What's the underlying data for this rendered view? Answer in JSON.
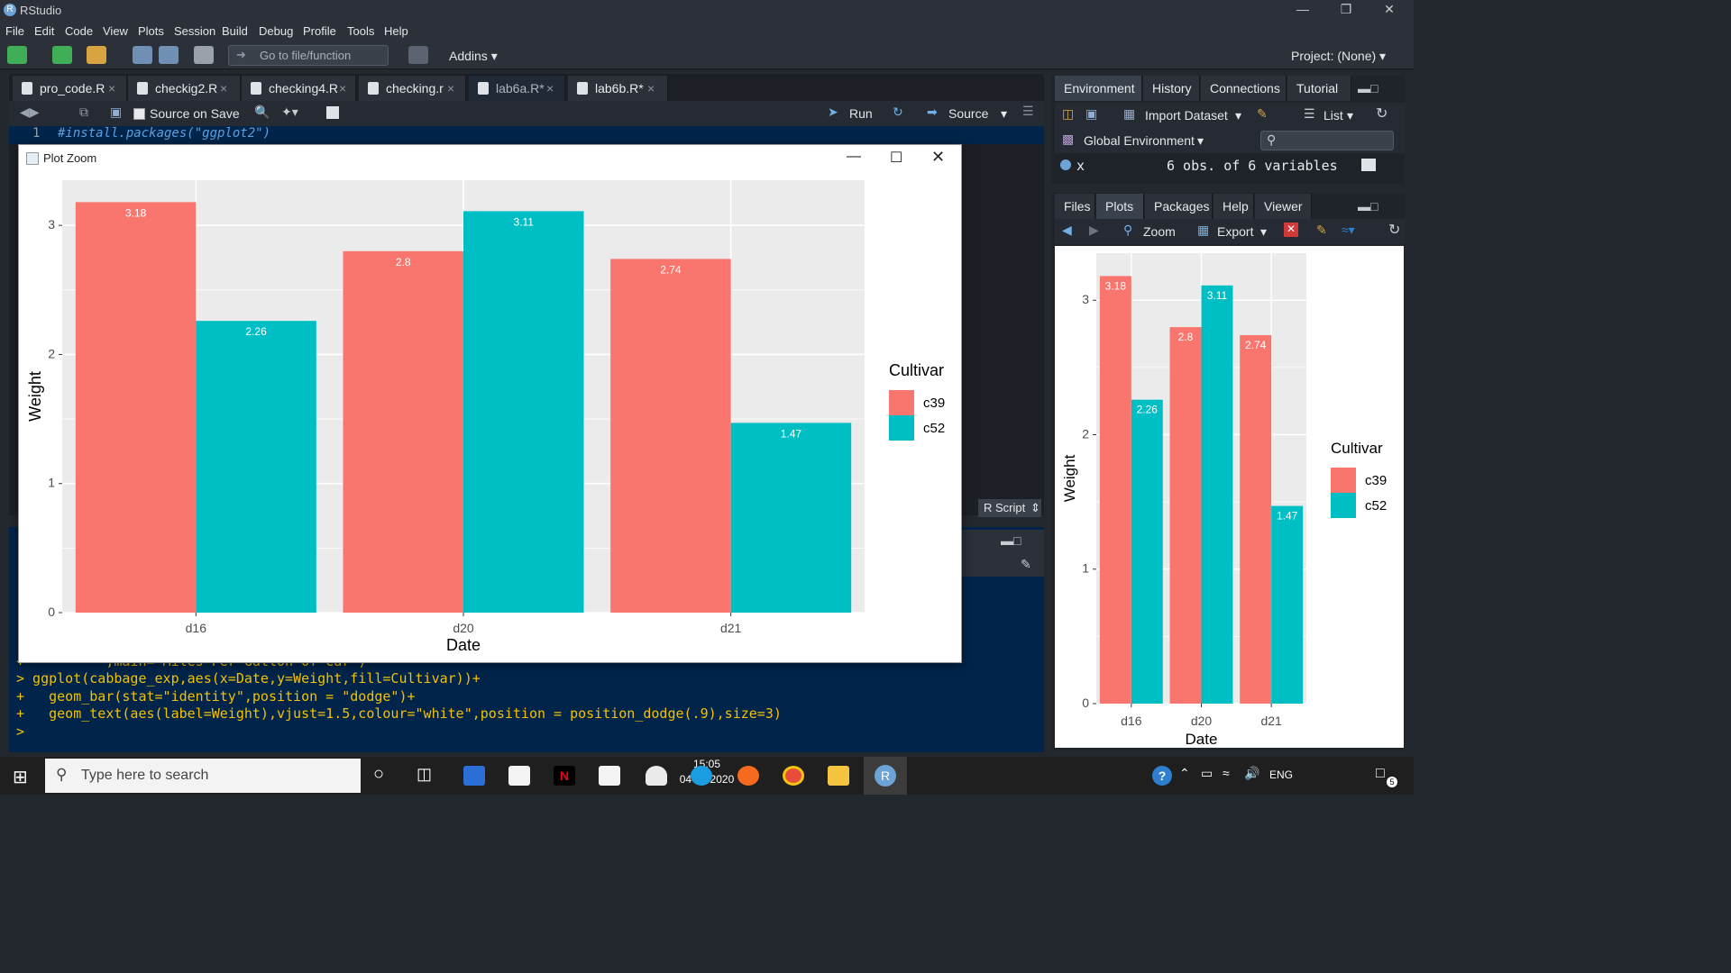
{
  "window": {
    "title": "RStudio"
  },
  "menu": [
    "File",
    "Edit",
    "Code",
    "View",
    "Plots",
    "Session",
    "Build",
    "Debug",
    "Profile",
    "Tools",
    "Help"
  ],
  "toolbar": {
    "goto_placeholder": "Go to file/function",
    "addins": "Addins",
    "project": "Project: (None)"
  },
  "source": {
    "tabs": [
      "pro_code.R",
      "checkig2.R",
      "checking4.R",
      "checking.r",
      "lab6a.R*",
      "lab6b.R*"
    ],
    "active_tab": "lab6a.R*",
    "source_on_save": "Source on Save",
    "run": "Run",
    "source_btn": "Source",
    "line_no": "1",
    "line_code": "#install.packages(\"ggplot2\")",
    "file_type": "R Script"
  },
  "console": {
    "partial_line": "+          ,main= Miles Per Gallon of Car )",
    "lines": [
      "> ggplot(cabbage_exp,aes(x=Date,y=Weight,fill=Cultivar))+",
      "+   geom_bar(stat=\"identity\",position = \"dodge\")+",
      "+   geom_text(aes(label=Weight),vjust=1.5,colour=\"white\",position = position_dodge(.9),size=3)",
      "> "
    ]
  },
  "env": {
    "tabs": [
      "Environment",
      "History",
      "Connections",
      "Tutorial"
    ],
    "import_dataset": "Import Dataset",
    "list": "List",
    "global_env": "Global Environment",
    "var_name": "x",
    "var_desc": "6 obs. of 6 variables"
  },
  "plots_pane": {
    "tabs": [
      "Files",
      "Plots",
      "Packages",
      "Help",
      "Viewer"
    ],
    "zoom": "Zoom",
    "export": "Export"
  },
  "zoom_window": {
    "title": "Plot Zoom"
  },
  "chart_data": {
    "type": "bar",
    "categories": [
      "d16",
      "d20",
      "d21"
    ],
    "series": [
      {
        "name": "c39",
        "values": [
          3.18,
          2.8,
          2.74
        ],
        "labels": [
          "3.18",
          "2.8",
          "2.74"
        ],
        "color": "#f8766d"
      },
      {
        "name": "c52",
        "values": [
          2.26,
          3.11,
          1.47
        ],
        "labels": [
          "2.26",
          "3.11",
          "1.47"
        ],
        "color": "#00bfc4"
      }
    ],
    "xlabel": "Date",
    "ylabel": "Weight",
    "legend_title": "Cultivar",
    "legend_position": "right",
    "yticks": [
      "0",
      "1",
      "2",
      "3"
    ],
    "ylim": [
      0,
      3.35
    ],
    "grid": true,
    "panel_background": "#ebebeb"
  },
  "taskbar": {
    "search_placeholder": "Type here to search",
    "lang": "ENG",
    "time": "15:05",
    "date": "04-11-2020",
    "notif_count": "5"
  }
}
